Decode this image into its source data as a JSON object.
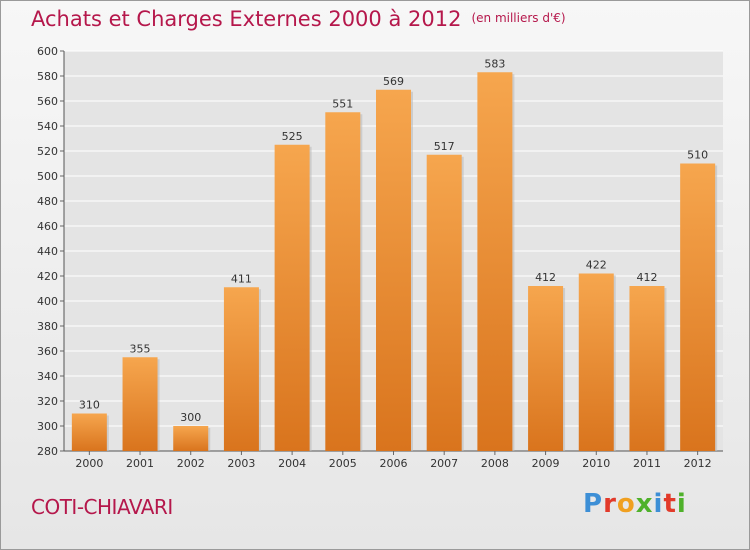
{
  "header": {
    "title": "Achats et Charges Externes 2000 à 2012",
    "subtitle": "(en milliers d'€)"
  },
  "footer": {
    "city": "COTI-CHIAVARI",
    "logo_text": "Proxiti"
  },
  "colors": {
    "bar_top": "#f6a64e",
    "bar_bottom": "#d9741d",
    "title": "#b5174b",
    "grid": "#ffffff",
    "logo_letters": [
      "#3d8fd6",
      "#e23a2a",
      "#f0a020",
      "#4fb12b",
      "#3d8fd6",
      "#e23a2a",
      "#4fb12b"
    ]
  },
  "chart_data": {
    "type": "bar",
    "title": "Achats et Charges Externes 2000 à 2012",
    "subtitle": "(en milliers d'€)",
    "categories": [
      "2000",
      "2001",
      "2002",
      "2003",
      "2004",
      "2005",
      "2006",
      "2007",
      "2008",
      "2009",
      "2010",
      "2011",
      "2012"
    ],
    "values": [
      310,
      355,
      300,
      411,
      525,
      551,
      569,
      517,
      583,
      412,
      422,
      412,
      510
    ],
    "data_labels": [
      "310",
      "355",
      "300",
      "411",
      "525",
      "551",
      "569",
      "517",
      "583",
      "412",
      "422",
      "412",
      "510"
    ],
    "ylim": [
      280,
      600
    ],
    "yticks": [
      280,
      300,
      320,
      340,
      360,
      380,
      400,
      420,
      440,
      460,
      480,
      500,
      520,
      540,
      560,
      580,
      600
    ],
    "grid": true,
    "xlabel": "",
    "ylabel": ""
  }
}
